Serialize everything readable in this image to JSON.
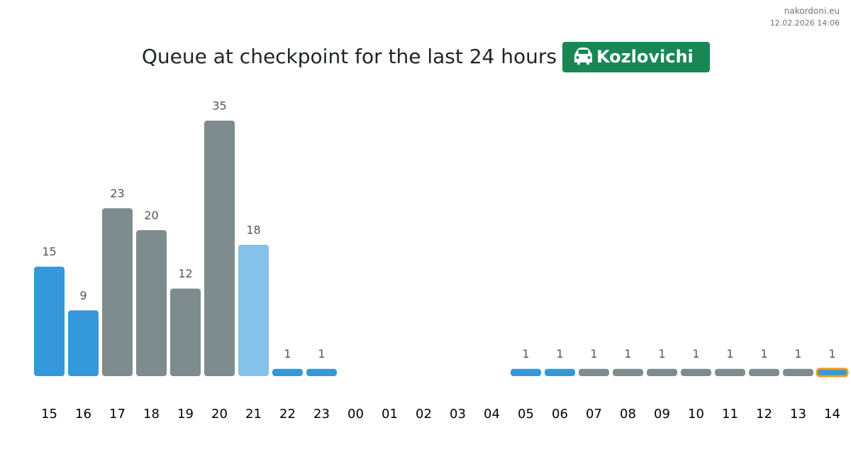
{
  "header": {
    "site": "nakordoni.eu",
    "timestamp": "12.02.2026 14:06"
  },
  "chart_data": {
    "type": "bar",
    "title": "Queue at checkpoint for the last 24 hours",
    "badge": "Kozlovichi",
    "categories": [
      "15",
      "16",
      "17",
      "18",
      "19",
      "20",
      "21",
      "22",
      "23",
      "00",
      "01",
      "02",
      "03",
      "04",
      "05",
      "06",
      "07",
      "08",
      "09",
      "10",
      "11",
      "12",
      "13",
      "14"
    ],
    "values": [
      15,
      9,
      23,
      20,
      12,
      35,
      18,
      1,
      1,
      null,
      null,
      null,
      null,
      null,
      1,
      1,
      1,
      1,
      1,
      1,
      1,
      1,
      1,
      1
    ],
    "colors": [
      "#3498db",
      "#3498db",
      "#7f8c8d",
      "#7f8c8d",
      "#7f8c8d",
      "#7f8c8d",
      "#85c1e9",
      "#3498db",
      "#3498db",
      null,
      null,
      null,
      null,
      null,
      "#3498db",
      "#3498db",
      "#7f8c8d",
      "#7f8c8d",
      "#7f8c8d",
      "#7f8c8d",
      "#7f8c8d",
      "#7f8c8d",
      "#7f8c8d",
      "#3498db"
    ],
    "outline_colors": [
      null,
      null,
      null,
      null,
      null,
      null,
      null,
      null,
      null,
      null,
      null,
      null,
      null,
      null,
      null,
      null,
      null,
      null,
      null,
      null,
      null,
      null,
      null,
      "#f39c12"
    ]
  }
}
